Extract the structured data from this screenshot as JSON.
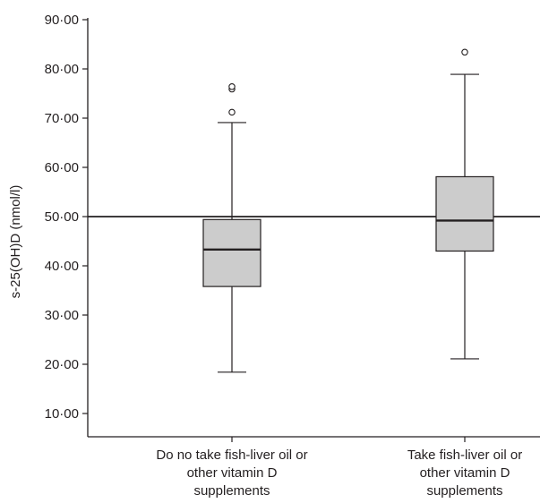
{
  "chart_data": {
    "type": "boxplot",
    "title": "",
    "ylabel": "s-25(OH)D (nmol/l)",
    "xlabel": "",
    "ylim": [
      5,
      90
    ],
    "yticks": [
      {
        "value": 10,
        "label": "10·00"
      },
      {
        "value": 20,
        "label": "20·00"
      },
      {
        "value": 30,
        "label": "30·00"
      },
      {
        "value": 40,
        "label": "40·00"
      },
      {
        "value": 50,
        "label": "50·00"
      },
      {
        "value": 60,
        "label": "60·00"
      },
      {
        "value": 70,
        "label": "70·00"
      },
      {
        "value": 80,
        "label": "80·00"
      },
      {
        "value": 90,
        "label": "90·00"
      }
    ],
    "reference_line": {
      "y": 50
    },
    "grid": false,
    "box_fill": "#cccccc",
    "stroke": "#231f20",
    "groups": [
      {
        "label_lines": [
          "Do no take fish-liver oil or",
          "other vitamin D",
          "supplements"
        ],
        "whisker_low": 18.4,
        "q1": 35.8,
        "median": 43.3,
        "q3": 49.4,
        "whisker_high": 69.1,
        "outliers": [
          71.2,
          75.9,
          76.4
        ]
      },
      {
        "label_lines": [
          "Take fish-liver oil or",
          "other vitamin D",
          "supplements"
        ],
        "whisker_low": 21.1,
        "q1": 43.0,
        "median": 49.2,
        "q3": 58.1,
        "whisker_high": 78.9,
        "outliers": [
          83.4
        ]
      }
    ]
  }
}
